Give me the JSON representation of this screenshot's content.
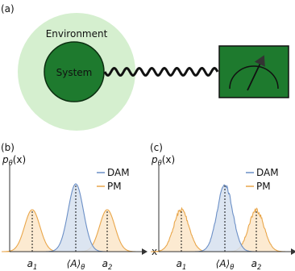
{
  "panel_a": {
    "label": "(a)",
    "environment": "Environment",
    "system": "System"
  },
  "panel_b": {
    "label": "(b)",
    "y_label": {
      "symbol": "p",
      "subscript": "θ",
      "argument": "(x)"
    },
    "x_label": "x",
    "legend": [
      "DAM",
      "PM"
    ],
    "tick_labels": [
      {
        "main": "a",
        "sub": "1"
      },
      {
        "main": "⟨A⟩",
        "sub": "θ"
      },
      {
        "main": "a",
        "sub": "2"
      }
    ]
  },
  "panel_c": {
    "label": "(c)",
    "y_label": {
      "symbol": "p",
      "subscript": "θ",
      "argument": "(x)"
    },
    "legend": [
      "DAM",
      "PM"
    ],
    "tick_labels": [
      {
        "main": "a",
        "sub": "1"
      },
      {
        "main": "⟨A⟩",
        "sub": "θ"
      },
      {
        "main": "a",
        "sub": "2"
      }
    ]
  }
}
